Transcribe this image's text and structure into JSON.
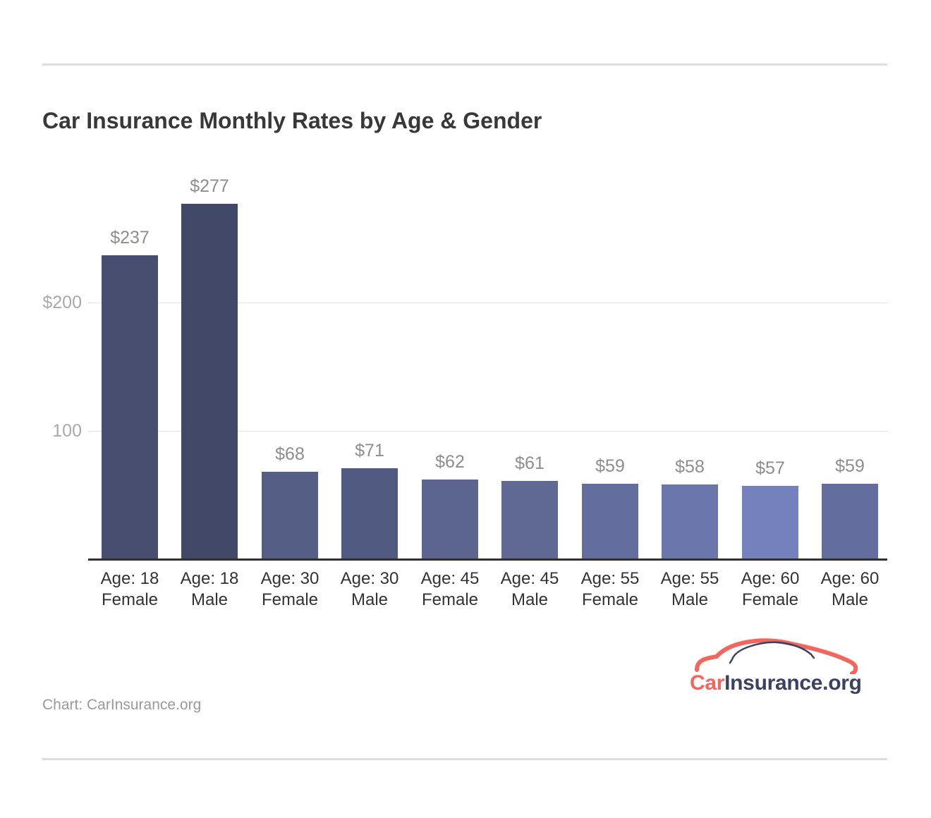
{
  "title": "Car Insurance Monthly Rates by Age & Gender",
  "source_label": "Chart: CarInsurance.org",
  "logo": {
    "car": "Car",
    "insurance": "Insurance",
    "org": ".org",
    "accent_color": "#f4655e",
    "navy_color": "#3b4163"
  },
  "chart_data": {
    "type": "bar",
    "title": "Car Insurance Monthly Rates by Age & Gender",
    "categories": [
      [
        "Age: 18",
        "Female"
      ],
      [
        "Age: 18",
        "Male"
      ],
      [
        "Age: 30",
        "Female"
      ],
      [
        "Age: 30",
        "Male"
      ],
      [
        "Age: 45",
        "Female"
      ],
      [
        "Age: 45",
        "Male"
      ],
      [
        "Age: 55",
        "Female"
      ],
      [
        "Age: 55",
        "Male"
      ],
      [
        "Age: 60",
        "Female"
      ],
      [
        "Age: 60",
        "Male"
      ]
    ],
    "values": [
      237,
      277,
      68,
      71,
      62,
      61,
      59,
      58,
      57,
      59
    ],
    "value_labels": [
      "$237",
      "$277",
      "$68",
      "$71",
      "$62",
      "$61",
      "$59",
      "$58",
      "$57",
      "$59"
    ],
    "bar_colors": [
      "#474e70",
      "#424868",
      "#555e85",
      "#515a80",
      "#5c6590",
      "#5f6994",
      "#636e9e",
      "#6b76ad",
      "#7581bd",
      "#636e9e"
    ],
    "yticks": [
      {
        "value": 100,
        "label": "100"
      },
      {
        "value": 200,
        "label": "$200"
      }
    ],
    "ylim": [
      0,
      300
    ],
    "grid": "horizontal-only",
    "legend": "none",
    "xlabel": "",
    "ylabel": ""
  }
}
